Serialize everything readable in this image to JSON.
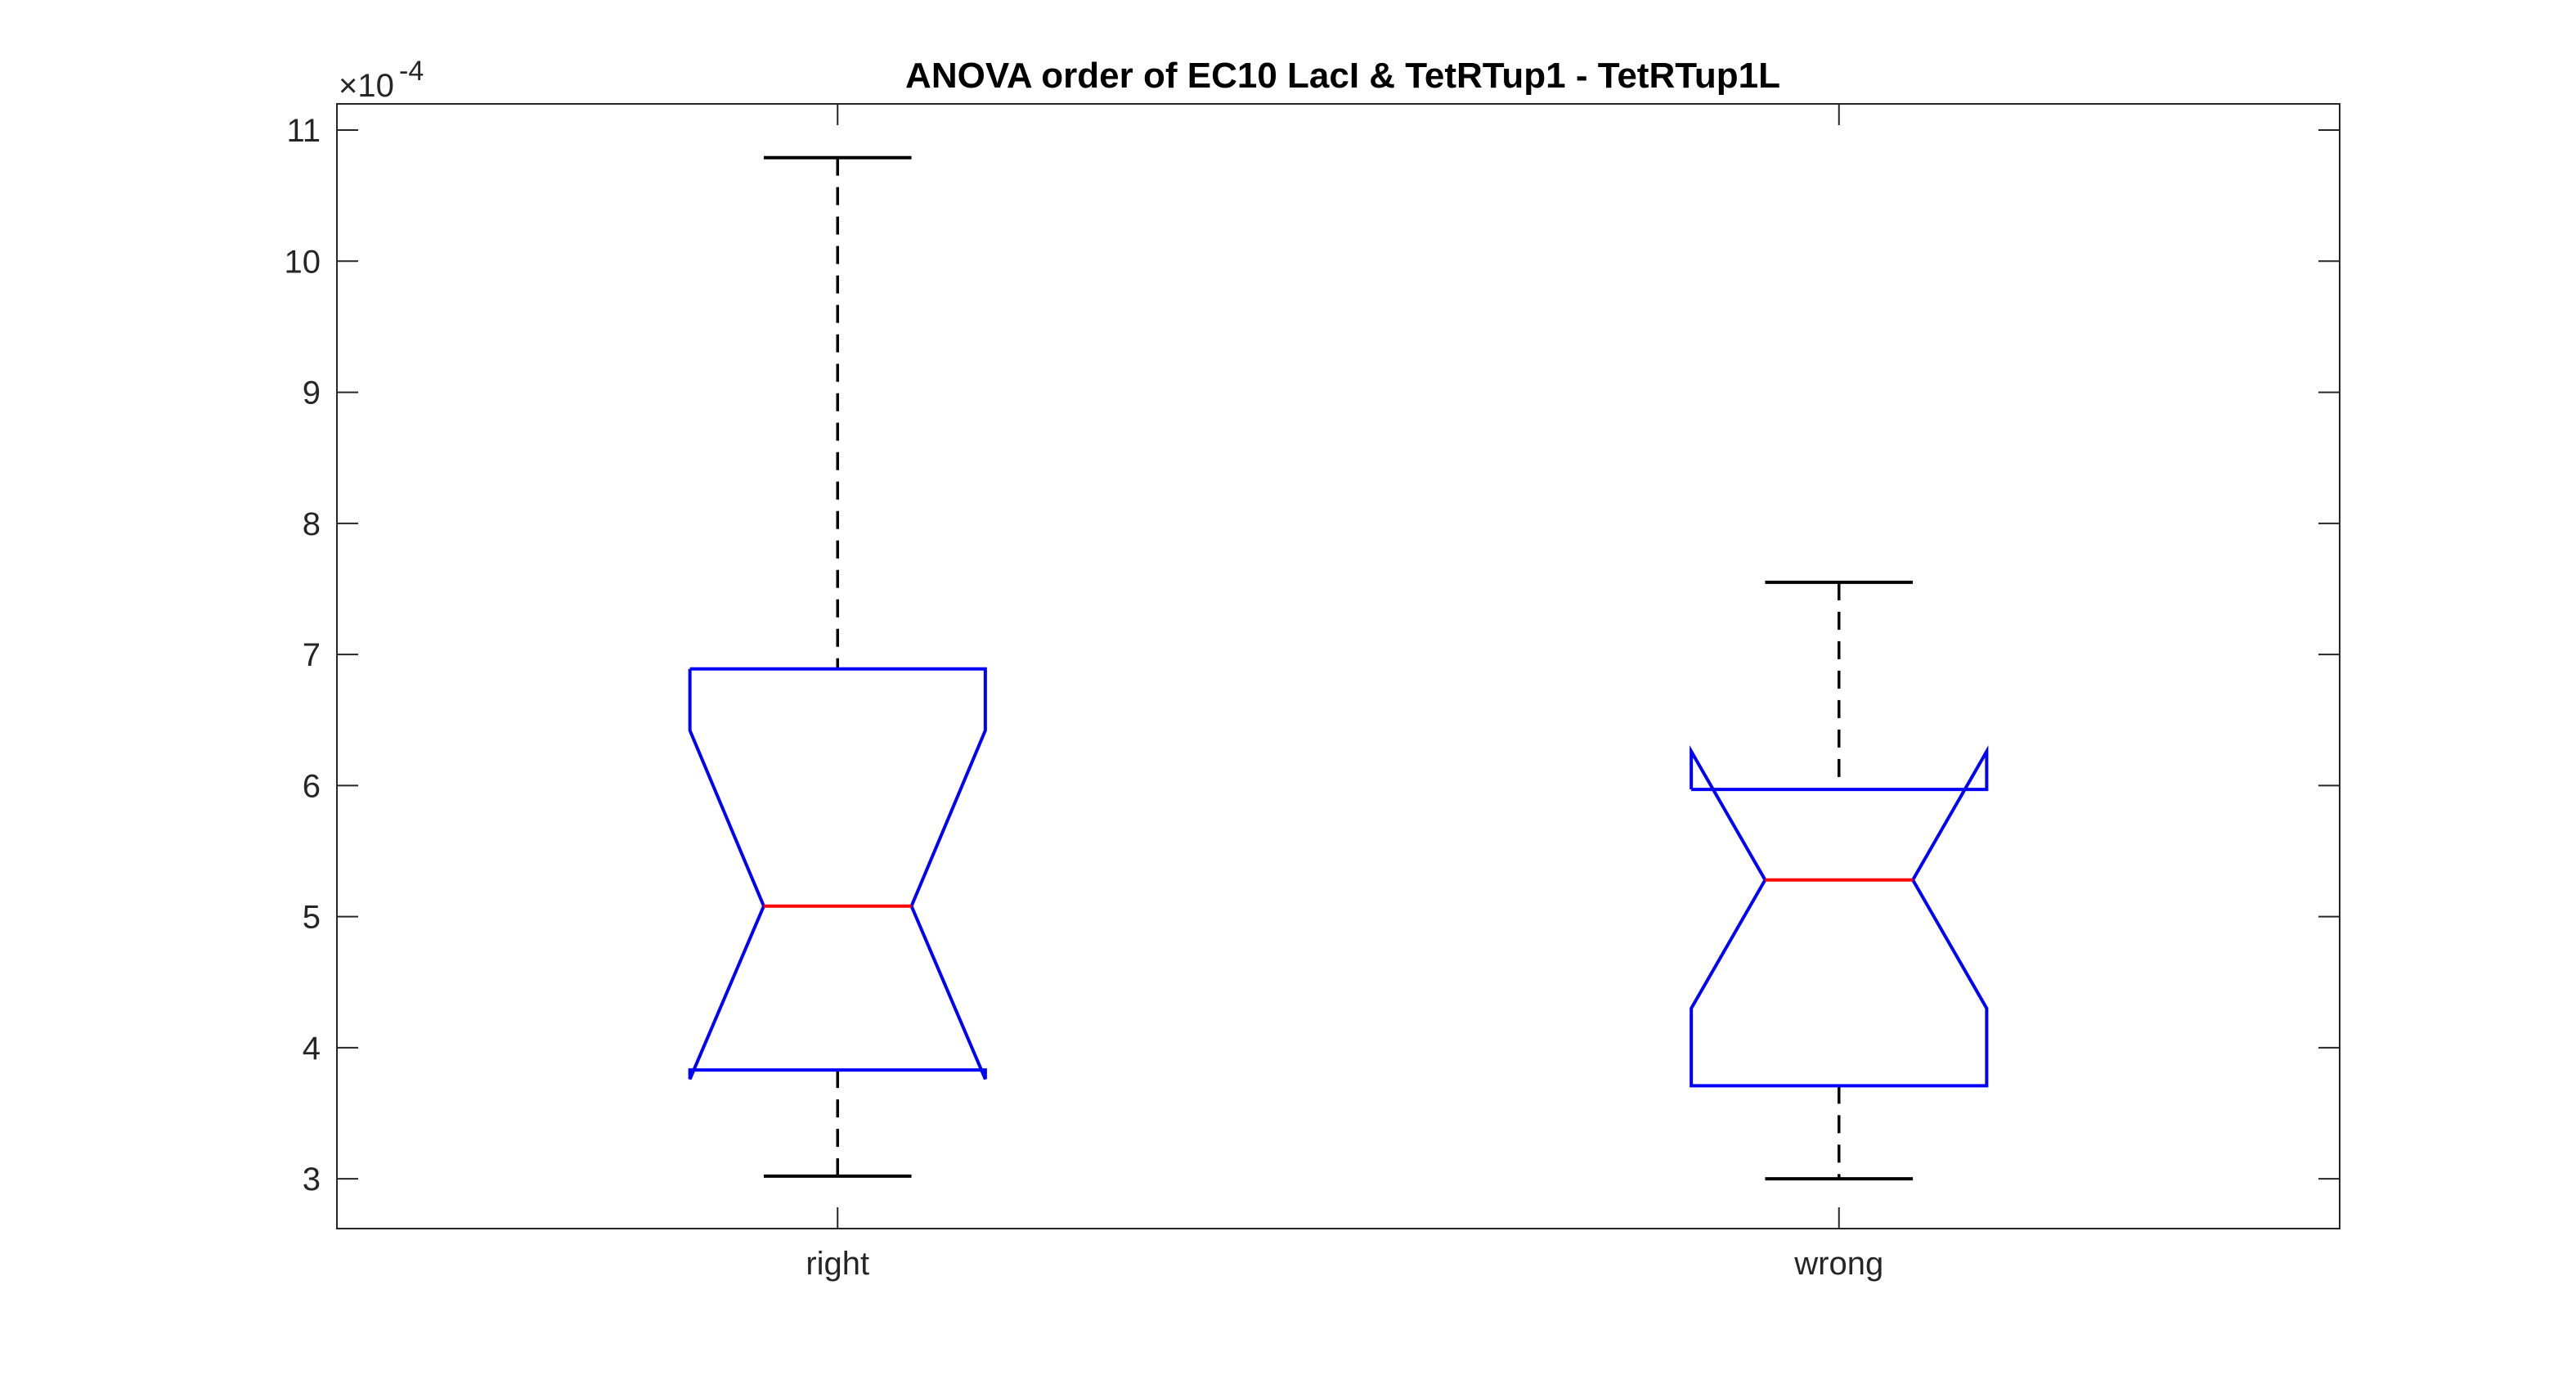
{
  "chart_data": {
    "type": "boxplot",
    "title": "ANOVA order of EC10 LacI & TetRTup1 - TetRTup1L",
    "xlabel": "",
    "ylabel": "",
    "y_exponent_label": {
      "base": "×10",
      "exponent": "-4"
    },
    "categories": [
      "right",
      "wrong"
    ],
    "y_scale": 0.0001,
    "ylim": [
      2.62,
      11.2
    ],
    "yticks": [
      3,
      4,
      5,
      6,
      7,
      8,
      9,
      10,
      11
    ],
    "boxes": [
      {
        "name": "right",
        "lower_whisker": 3.02,
        "q1": 3.83,
        "median": 5.08,
        "q3": 6.89,
        "upper_whisker": 10.79,
        "notch_low": 3.76,
        "notch_high": 6.42
      },
      {
        "name": "wrong",
        "lower_whisker": 3.0,
        "q1": 3.71,
        "median": 5.28,
        "q3": 5.97,
        "upper_whisker": 7.55,
        "notch_low": 4.3,
        "notch_high": 6.26
      }
    ],
    "grid": false,
    "colors": {
      "box": "#0000ff",
      "median": "#ff0000",
      "whisker": "#000000",
      "axis": "#262626"
    }
  }
}
